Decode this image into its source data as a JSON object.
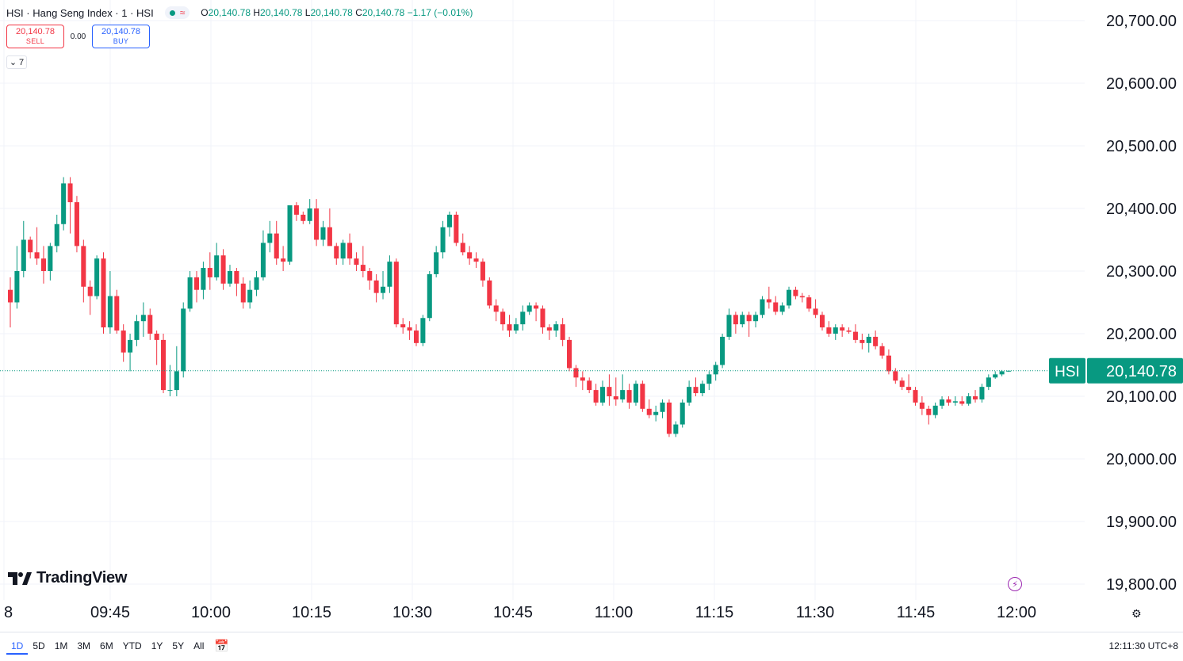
{
  "legend": {
    "symbol": "HSI · Hang Seng Index · 1 · HSI",
    "open_k": "O",
    "open_v": "20,140.78",
    "high_k": "H",
    "high_v": "20,140.78",
    "low_k": "L",
    "low_v": "20,140.78",
    "close_k": "C",
    "close_v": "20,140.78",
    "change": "−1.17 (−0.01%)"
  },
  "trade": {
    "sell_price": "20,140.78",
    "sell_label": "SELL",
    "spread": "0.00",
    "buy_price": "20,140.78",
    "buy_label": "BUY"
  },
  "indicators_toggle": "7",
  "logo_text": "TradingView",
  "price_tag": {
    "symbol": "HSI",
    "value": "20,140.78"
  },
  "range_buttons": [
    "1D",
    "5D",
    "1M",
    "3M",
    "6M",
    "YTD",
    "1Y",
    "5Y",
    "All"
  ],
  "active_range": "1D",
  "clock": "12:11:30 UTC+8",
  "colors": {
    "up": "#089981",
    "down": "#f23645",
    "grid": "#f0f3fa",
    "accent": "#2962ff"
  },
  "chart_data": {
    "type": "candlestick",
    "symbol": "HSI",
    "interval": "1 minute",
    "ylim": [
      19760,
      20760
    ],
    "y_ticks": [
      19800,
      19900,
      20000,
      20100,
      20200,
      20300,
      20400,
      20500,
      20600,
      20700
    ],
    "y_tick_labels": [
      "19,800.00",
      "19,900.00",
      "20,000.00",
      "20,100.00",
      "20,200.00",
      "20,300.00",
      "20,400.00",
      "20,500.00",
      "20,600.00",
      "20,700.00"
    ],
    "x_tick_labels": [
      "8",
      "09:45",
      "10:00",
      "10:15",
      "10:30",
      "10:45",
      "11:00",
      "11:15",
      "11:30",
      "11:45",
      "12:00"
    ],
    "last_price": 20140.78,
    "candles": [
      [
        20270,
        20290,
        20210,
        20250
      ],
      [
        20250,
        20340,
        20240,
        20300
      ],
      [
        20300,
        20380,
        20290,
        20350
      ],
      [
        20350,
        20355,
        20320,
        20330
      ],
      [
        20330,
        20370,
        20310,
        20320
      ],
      [
        20320,
        20340,
        20280,
        20300
      ],
      [
        20300,
        20345,
        20285,
        20340
      ],
      [
        20340,
        20390,
        20330,
        20375
      ],
      [
        20375,
        20450,
        20365,
        20440
      ],
      [
        20440,
        20450,
        20360,
        20410
      ],
      [
        20410,
        20420,
        20330,
        20340
      ],
      [
        20340,
        20350,
        20250,
        20275
      ],
      [
        20275,
        20285,
        20230,
        20260
      ],
      [
        20260,
        20325,
        20255,
        20320
      ],
      [
        20320,
        20330,
        20200,
        20210
      ],
      [
        20210,
        20300,
        20200,
        20260
      ],
      [
        20260,
        20270,
        20200,
        20205
      ],
      [
        20205,
        20215,
        20155,
        20170
      ],
      [
        20170,
        20200,
        20140,
        20190
      ],
      [
        20190,
        20230,
        20180,
        20220
      ],
      [
        20220,
        20250,
        20195,
        20230
      ],
      [
        20230,
        20240,
        20190,
        20200
      ],
      [
        20200,
        20205,
        20150,
        20190
      ],
      [
        20190,
        20200,
        20105,
        20110
      ],
      [
        20110,
        20150,
        20100,
        20110
      ],
      [
        20110,
        20180,
        20100,
        20140
      ],
      [
        20140,
        20250,
        20130,
        20240
      ],
      [
        20240,
        20300,
        20235,
        20290
      ],
      [
        20290,
        20300,
        20250,
        20270
      ],
      [
        20270,
        20315,
        20255,
        20305
      ],
      [
        20305,
        20330,
        20270,
        20290
      ],
      [
        20290,
        20345,
        20285,
        20325
      ],
      [
        20325,
        20335,
        20270,
        20280
      ],
      [
        20280,
        20310,
        20275,
        20300
      ],
      [
        20300,
        20305,
        20260,
        20280
      ],
      [
        20280,
        20290,
        20240,
        20250
      ],
      [
        20250,
        20285,
        20240,
        20270
      ],
      [
        20270,
        20300,
        20260,
        20290
      ],
      [
        20290,
        20365,
        20285,
        20345
      ],
      [
        20345,
        20380,
        20330,
        20360
      ],
      [
        20360,
        20380,
        20310,
        20320
      ],
      [
        20320,
        20340,
        20300,
        20315
      ],
      [
        20315,
        20400,
        20310,
        20405
      ],
      [
        20405,
        20410,
        20380,
        20390
      ],
      [
        20390,
        20395,
        20375,
        20380
      ],
      [
        20380,
        20415,
        20375,
        20400
      ],
      [
        20400,
        20415,
        20340,
        20350
      ],
      [
        20350,
        20380,
        20340,
        20370
      ],
      [
        20370,
        20400,
        20350,
        20340
      ],
      [
        20340,
        20345,
        20310,
        20320
      ],
      [
        20320,
        20350,
        20310,
        20345
      ],
      [
        20345,
        20360,
        20310,
        20320
      ],
      [
        20320,
        20330,
        20300,
        20310
      ],
      [
        20310,
        20340,
        20290,
        20300
      ],
      [
        20300,
        20305,
        20270,
        20285
      ],
      [
        20285,
        20295,
        20250,
        20265
      ],
      [
        20265,
        20300,
        20255,
        20275
      ],
      [
        20275,
        20325,
        20265,
        20315
      ],
      [
        20315,
        20320,
        20210,
        20215
      ],
      [
        20215,
        20225,
        20200,
        20210
      ],
      [
        20210,
        20220,
        20190,
        20205
      ],
      [
        20205,
        20215,
        20180,
        20185
      ],
      [
        20185,
        20230,
        20180,
        20225
      ],
      [
        20225,
        20300,
        20220,
        20295
      ],
      [
        20295,
        20340,
        20290,
        20330
      ],
      [
        20330,
        20380,
        20320,
        20370
      ],
      [
        20370,
        20395,
        20355,
        20390
      ],
      [
        20390,
        20395,
        20340,
        20345
      ],
      [
        20345,
        20360,
        20325,
        20330
      ],
      [
        20330,
        20340,
        20310,
        20320
      ],
      [
        20320,
        20330,
        20305,
        20315
      ],
      [
        20315,
        20320,
        20275,
        20285
      ],
      [
        20285,
        20290,
        20240,
        20245
      ],
      [
        20245,
        20255,
        20220,
        20235
      ],
      [
        20235,
        20240,
        20205,
        20215
      ],
      [
        20215,
        20230,
        20195,
        20205
      ],
      [
        20205,
        20225,
        20200,
        20215
      ],
      [
        20215,
        20245,
        20205,
        20235
      ],
      [
        20235,
        20250,
        20230,
        20245
      ],
      [
        20245,
        20250,
        20220,
        20240
      ],
      [
        20240,
        20245,
        20200,
        20210
      ],
      [
        20210,
        20215,
        20190,
        20205
      ],
      [
        20205,
        20220,
        20195,
        20215
      ],
      [
        20215,
        20225,
        20180,
        20190
      ],
      [
        20190,
        20195,
        20140,
        20145
      ],
      [
        20145,
        20150,
        20115,
        20130
      ],
      [
        20130,
        20140,
        20110,
        20125
      ],
      [
        20125,
        20130,
        20105,
        20110
      ],
      [
        20110,
        20120,
        20085,
        20090
      ],
      [
        20090,
        20125,
        20085,
        20115
      ],
      [
        20115,
        20135,
        20085,
        20100
      ],
      [
        20100,
        20130,
        20085,
        20095
      ],
      [
        20095,
        20135,
        20090,
        20110
      ],
      [
        20110,
        20120,
        20080,
        20090
      ],
      [
        20090,
        20125,
        20085,
        20120
      ],
      [
        20120,
        20125,
        20075,
        20080
      ],
      [
        20080,
        20095,
        20065,
        20070
      ],
      [
        20070,
        20085,
        20060,
        20075
      ],
      [
        20075,
        20095,
        20065,
        20090
      ],
      [
        20090,
        20095,
        20035,
        20040
      ],
      [
        20040,
        20060,
        20035,
        20055
      ],
      [
        20055,
        20095,
        20050,
        20090
      ],
      [
        20090,
        20125,
        20085,
        20115
      ],
      [
        20115,
        20130,
        20100,
        20105
      ],
      [
        20105,
        20125,
        20100,
        20120
      ],
      [
        20120,
        20140,
        20110,
        20135
      ],
      [
        20135,
        20155,
        20125,
        20150
      ],
      [
        20150,
        20200,
        20145,
        20195
      ],
      [
        20195,
        20240,
        20190,
        20230
      ],
      [
        20230,
        20235,
        20200,
        20215
      ],
      [
        20215,
        20235,
        20210,
        20230
      ],
      [
        20230,
        20235,
        20195,
        20220
      ],
      [
        20220,
        20235,
        20210,
        20230
      ],
      [
        20230,
        20260,
        20225,
        20255
      ],
      [
        20255,
        20275,
        20240,
        20250
      ],
      [
        20250,
        20260,
        20230,
        20235
      ],
      [
        20235,
        20250,
        20230,
        20245
      ],
      [
        20245,
        20275,
        20240,
        20270
      ],
      [
        20270,
        20275,
        20255,
        20260
      ],
      [
        20260,
        20265,
        20250,
        20258
      ],
      [
        20258,
        20262,
        20235,
        20240
      ],
      [
        20240,
        20255,
        20225,
        20230
      ],
      [
        20230,
        20235,
        20205,
        20210
      ],
      [
        20210,
        20220,
        20195,
        20200
      ],
      [
        20200,
        20215,
        20190,
        20210
      ],
      [
        20210,
        20215,
        20195,
        20205
      ],
      [
        20205,
        20210,
        20200,
        20203
      ],
      [
        20203,
        20215,
        20185,
        20190
      ],
      [
        20190,
        20200,
        20175,
        20185
      ],
      [
        20185,
        20200,
        20170,
        20195
      ],
      [
        20195,
        20205,
        20175,
        20180
      ],
      [
        20180,
        20185,
        20160,
        20165
      ],
      [
        20165,
        20175,
        20135,
        20140
      ],
      [
        20140,
        20145,
        20120,
        20125
      ],
      [
        20125,
        20130,
        20110,
        20115
      ],
      [
        20115,
        20135,
        20105,
        20110
      ],
      [
        20110,
        20115,
        20085,
        20090
      ],
      [
        20090,
        20100,
        20070,
        20080
      ],
      [
        20080,
        20085,
        20055,
        20070
      ],
      [
        20070,
        20090,
        20065,
        20085
      ],
      [
        20085,
        20100,
        20080,
        20095
      ],
      [
        20095,
        20100,
        20085,
        20090
      ],
      [
        20090,
        20100,
        20085,
        20092
      ],
      [
        20092,
        20100,
        20085,
        20088
      ],
      [
        20088,
        20105,
        20085,
        20100
      ],
      [
        20100,
        20110,
        20090,
        20095
      ],
      [
        20095,
        20120,
        20090,
        20115
      ],
      [
        20115,
        20135,
        20110,
        20130
      ],
      [
        20130,
        20140,
        20128,
        20135
      ],
      [
        20135,
        20142,
        20132,
        20140
      ],
      [
        20140,
        20141,
        20139,
        20140.78
      ]
    ]
  }
}
